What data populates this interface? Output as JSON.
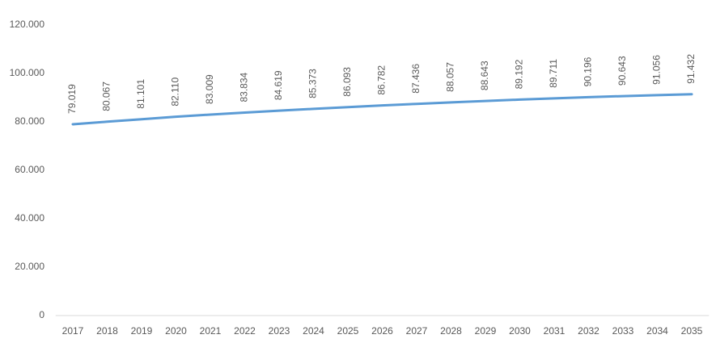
{
  "chart_data": {
    "type": "line",
    "categories": [
      "2017",
      "2018",
      "2019",
      "2020",
      "2021",
      "2022",
      "2023",
      "2024",
      "2025",
      "2026",
      "2027",
      "2028",
      "2029",
      "2030",
      "2031",
      "2032",
      "2033",
      "2034",
      "2035"
    ],
    "series": [
      {
        "color": "#5b9bd5",
        "values": [
          79019,
          80067,
          81101,
          82110,
          83009,
          83834,
          84619,
          85373,
          86093,
          86782,
          87436,
          88057,
          88643,
          89192,
          89711,
          90196,
          90643,
          91056,
          91432
        ],
        "value_labels": [
          "79.019",
          "80.067",
          "81.101",
          "82.110",
          "83.009",
          "83.834",
          "84.619",
          "85.373",
          "86.093",
          "86.782",
          "87.436",
          "88.057",
          "88.643",
          "89.192",
          "89.711",
          "90.196",
          "90.643",
          "91.056",
          "91.432"
        ]
      }
    ],
    "ylim": [
      0,
      120000
    ],
    "yticks": [
      0,
      {
        "value": 20000,
        "label": "20.000"
      },
      {
        "value": 40000,
        "label": "40.000"
      },
      {
        "value": 60000,
        "label": "60.000"
      },
      {
        "value": 80000,
        "label": "80.000"
      },
      {
        "value": 100000,
        "label": "100.000"
      },
      {
        "value": 120000,
        "label": "120.000"
      }
    ],
    "grid": false
  }
}
